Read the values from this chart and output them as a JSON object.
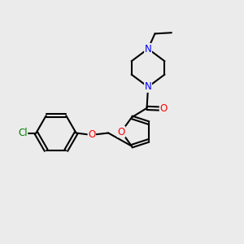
{
  "background_color": "#ebebeb",
  "bond_color": "#000000",
  "bond_width": 1.5,
  "atom_colors": {
    "O": "#ff0000",
    "N": "#0000ff",
    "Cl": "#008000",
    "C": "#000000"
  },
  "font_size": 8.5
}
